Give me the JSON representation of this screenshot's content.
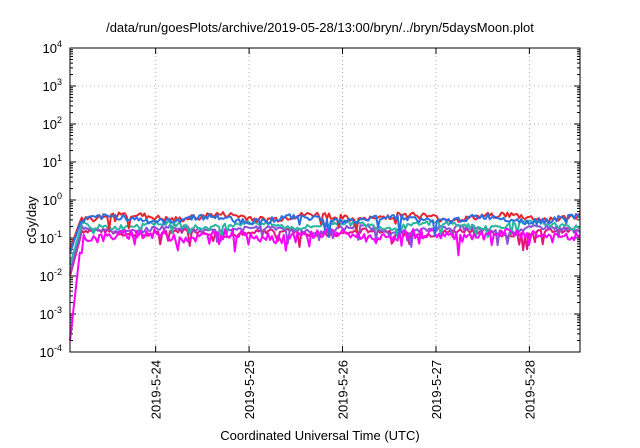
{
  "chart_data": {
    "type": "line",
    "title": "/data/run/goesPlots/archive/2019-05-28/13:00/bryn/../bryn/5daysMoon.plot",
    "xlabel": "Coordinated Universal Time (UTC)",
    "ylabel": "cGy/day",
    "yscale": "log",
    "ylim": [
      0.0001,
      10000
    ],
    "ytick_values": [
      0.0001,
      0.001,
      0.01,
      0.1,
      1,
      10,
      100,
      1000,
      10000
    ],
    "ytick_labels": [
      {
        "base": "10",
        "exp": "-4"
      },
      {
        "base": "10",
        "exp": "-3"
      },
      {
        "base": "10",
        "exp": "-2"
      },
      {
        "base": "10",
        "exp": "-1"
      },
      {
        "base": "10",
        "exp": "0"
      },
      {
        "base": "10",
        "exp": "1"
      },
      {
        "base": "10",
        "exp": "2"
      },
      {
        "base": "10",
        "exp": "3"
      },
      {
        "base": "10",
        "exp": "4"
      }
    ],
    "xlim": [
      "2019-05-23 02:00",
      "2019-05-28 13:00"
    ],
    "xtick_values": [
      "2019-05-24",
      "2019-05-25",
      "2019-05-26",
      "2019-05-27",
      "2019-05-28"
    ],
    "xtick_labels": [
      "2019-5-24",
      "2019-5-25",
      "2019-5-26",
      "2019-5-27",
      "2019-5-28"
    ],
    "grid": true,
    "series": [
      {
        "color": "#e0187a",
        "level": 0.14,
        "noise": 0.05,
        "startValue": 0.01
      },
      {
        "color": "#8b4fd8",
        "level": 0.17,
        "noise": 0.05,
        "startValue": 0.012
      },
      {
        "color": "#2ab5a0",
        "level": 0.22,
        "noise": 0.05,
        "startValue": 0.02
      },
      {
        "color": "#ff00ff",
        "level": 0.12,
        "noise": 0.1,
        "startValue": 0.0002
      },
      {
        "color": "#e5262d",
        "level": 0.36,
        "noise": 0.06,
        "startValue": 0.05
      },
      {
        "color": "#2a6fe0",
        "level": 0.32,
        "noise": 0.06,
        "startValue": 0.04
      }
    ]
  }
}
